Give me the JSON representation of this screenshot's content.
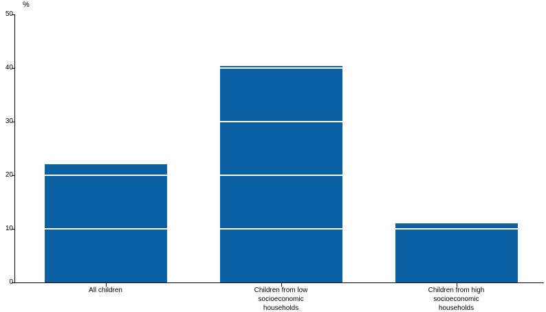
{
  "chart_data": {
    "type": "bar",
    "title": "",
    "ylabel": "%",
    "xlabel": "",
    "ylim": [
      0,
      50
    ],
    "yticks": [
      0,
      10,
      20,
      30,
      40,
      50
    ],
    "categories": [
      "All children",
      "Children from low\nsocioeconomic\nhouseholds",
      "Children from high\nsocioeconomic\nhouseholds"
    ],
    "values": [
      22,
      40.4,
      11
    ],
    "bar_color": "#0b61a4",
    "gridline_color": "#ffffff",
    "axis_color": "#000000",
    "gridlines_over_bars_only": true,
    "legend_position": "none"
  }
}
